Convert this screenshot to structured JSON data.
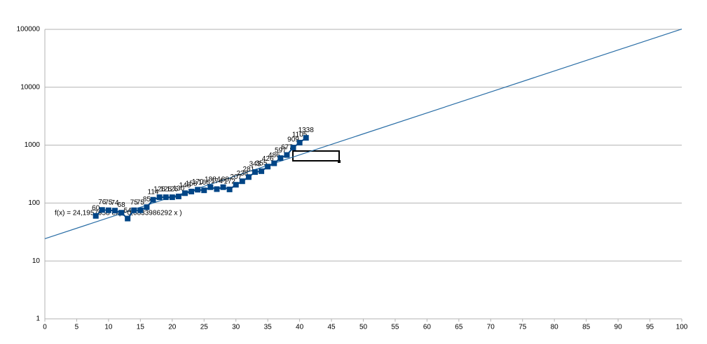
{
  "chart_data": {
    "type": "scatter",
    "x": [
      8,
      9,
      10,
      11,
      12,
      13,
      14,
      15,
      16,
      17,
      18,
      19,
      20,
      21,
      22,
      23,
      24,
      25,
      26,
      27,
      28,
      29,
      30,
      31,
      32,
      33,
      34,
      35,
      36,
      37,
      38,
      39,
      40,
      41
    ],
    "series": [
      {
        "color": "#004586",
        "values": [
          60,
          76,
          75,
          74,
          68,
          54,
          75,
          75,
          85,
          114,
          126,
          126,
          126,
          130,
          148,
          158,
          170,
          166,
          188,
          174,
          188,
          172,
          207,
          238,
          281,
          343,
          355,
          426,
          486,
          597,
          677,
          909,
          1105,
          1338
        ]
      }
    ],
    "trendline": {
      "label": "f(x) = 24,1957958 exp( 0,0833986292 x )",
      "a": 24.1957958,
      "b": 0.0833986292,
      "color": "#2a6ea6"
    },
    "xlim": [
      0,
      100
    ],
    "xticks": [
      0,
      5,
      10,
      15,
      20,
      25,
      30,
      35,
      40,
      45,
      50,
      55,
      60,
      65,
      70,
      75,
      80,
      85,
      90,
      95,
      100
    ],
    "ylim": [
      1,
      100000
    ],
    "yticks": [
      1,
      10,
      100,
      1000,
      10000,
      100000
    ],
    "log_y": true,
    "grid": true
  }
}
